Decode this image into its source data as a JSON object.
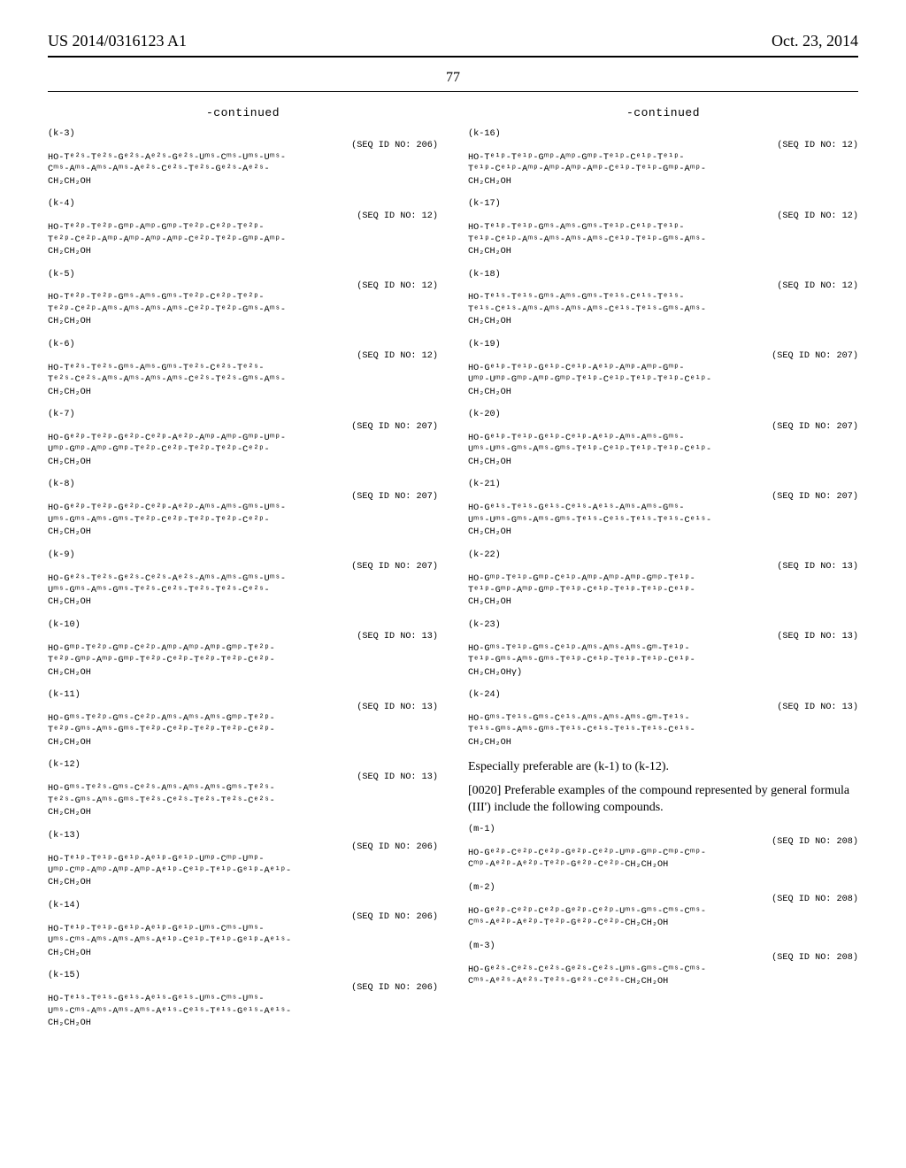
{
  "header": {
    "left": "US 2014/0316123 A1",
    "right": "Oct. 23, 2014",
    "pageno": "77"
  },
  "left_column": {
    "continued": "-continued",
    "blocks": [
      {
        "tag": "(k-3)",
        "seqid": "(SEQ ID NO: 206)",
        "lines": "HO-Tᵉ²ˢ-Tᵉ²ˢ-Gᵉ²ˢ-Aᵉ²ˢ-Gᵉ²ˢ-Uᵐˢ-Cᵐˢ-Uᵐˢ-Uᵐˢ-\nCᵐˢ-Aᵐˢ-Aᵐˢ-Aᵐˢ-Aᵉ²ˢ-Cᵉ²ˢ-Tᵉ²ˢ-Gᵉ²ˢ-Aᵉ²ˢ-\nCH₂CH₂OH"
      },
      {
        "tag": "(k-4)",
        "seqid": "(SEQ ID NO: 12)",
        "lines": "HO-Tᵉ²ᵖ-Tᵉ²ᵖ-Gᵐᵖ-Aᵐᵖ-Gᵐᵖ-Tᵉ²ᵖ-Cᵉ²ᵖ-Tᵉ²ᵖ-\nTᵉ²ᵖ-Cᵉ²ᵖ-Aᵐᵖ-Aᵐᵖ-Aᵐᵖ-Aᵐᵖ-Cᵉ²ᵖ-Tᵉ²ᵖ-Gᵐᵖ-Aᵐᵖ-\nCH₂CH₂OH"
      },
      {
        "tag": "(k-5)",
        "seqid": "(SEQ ID NO: 12)",
        "lines": "HO-Tᵉ²ᵖ-Tᵉ²ᵖ-Gᵐˢ-Aᵐˢ-Gᵐˢ-Tᵉ²ᵖ-Cᵉ²ᵖ-Tᵉ²ᵖ-\nTᵉ²ᵖ-Cᵉ²ᵖ-Aᵐˢ-Aᵐˢ-Aᵐˢ-Aᵐˢ-Cᵉ²ᵖ-Tᵉ²ᵖ-Gᵐˢ-Aᵐˢ-\nCH₂CH₂OH"
      },
      {
        "tag": "(k-6)",
        "seqid": "(SEQ ID NO: 12)",
        "lines": "HO-Tᵉ²ˢ-Tᵉ²ˢ-Gᵐˢ-Aᵐˢ-Gᵐˢ-Tᵉ²ˢ-Cᵉ²ˢ-Tᵉ²ˢ-\nTᵉ²ˢ-Cᵉ²ˢ-Aᵐˢ-Aᵐˢ-Aᵐˢ-Aᵐˢ-Cᵉ²ˢ-Tᵉ²ˢ-Gᵐˢ-Aᵐˢ-\nCH₂CH₂OH"
      },
      {
        "tag": "(k-7)",
        "seqid": "(SEQ ID NO: 207)",
        "lines": "HO-Gᵉ²ᵖ-Tᵉ²ᵖ-Gᵉ²ᵖ-Cᵉ²ᵖ-Aᵉ²ᵖ-Aᵐᵖ-Aᵐᵖ-Gᵐᵖ-Uᵐᵖ-\nUᵐᵖ-Gᵐᵖ-Aᵐᵖ-Gᵐᵖ-Tᵉ²ᵖ-Cᵉ²ᵖ-Tᵉ²ᵖ-Tᵉ²ᵖ-Cᵉ²ᵖ-\nCH₂CH₂OH"
      },
      {
        "tag": "(k-8)",
        "seqid": "(SEQ ID NO: 207)",
        "lines": "HO-Gᵉ²ᵖ-Tᵉ²ᵖ-Gᵉ²ᵖ-Cᵉ²ᵖ-Aᵉ²ᵖ-Aᵐˢ-Aᵐˢ-Gᵐˢ-Uᵐˢ-\nUᵐˢ-Gᵐˢ-Aᵐˢ-Gᵐˢ-Tᵉ²ᵖ-Cᵉ²ᵖ-Tᵉ²ᵖ-Tᵉ²ᵖ-Cᵉ²ᵖ-\nCH₂CH₂OH"
      },
      {
        "tag": "(k-9)",
        "seqid": "(SEQ ID NO: 207)",
        "lines": "HO-Gᵉ²ˢ-Tᵉ²ˢ-Gᵉ²ˢ-Cᵉ²ˢ-Aᵉ²ˢ-Aᵐˢ-Aᵐˢ-Gᵐˢ-Uᵐˢ-\nUᵐˢ-Gᵐˢ-Aᵐˢ-Gᵐˢ-Tᵉ²ˢ-Cᵉ²ˢ-Tᵉ²ˢ-Tᵉ²ˢ-Cᵉ²ˢ-\nCH₂CH₂OH"
      },
      {
        "tag": "(k-10)",
        "seqid": "(SEQ ID NO: 13)",
        "lines": "HO-Gᵐᵖ-Tᵉ²ᵖ-Gᵐᵖ-Cᵉ²ᵖ-Aᵐᵖ-Aᵐᵖ-Aᵐᵖ-Gᵐᵖ-Tᵉ²ᵖ-\nTᵉ²ᵖ-Gᵐᵖ-Aᵐᵖ-Gᵐᵖ-Tᵉ²ᵖ-Cᵉ²ᵖ-Tᵉ²ᵖ-Tᵉ²ᵖ-Cᵉ²ᵖ-\nCH₂CH₂OH"
      },
      {
        "tag": "(k-11)",
        "seqid": "(SEQ ID NO: 13)",
        "lines": "HO-Gᵐˢ-Tᵉ²ᵖ-Gᵐˢ-Cᵉ²ᵖ-Aᵐˢ-Aᵐˢ-Aᵐˢ-Gᵐᵖ-Tᵉ²ᵖ-\nTᵉ²ᵖ-Gᵐˢ-Aᵐˢ-Gᵐˢ-Tᵉ²ᵖ-Cᵉ²ᵖ-Tᵉ²ᵖ-Tᵉ²ᵖ-Cᵉ²ᵖ-\nCH₂CH₂OH"
      },
      {
        "tag": "(k-12)",
        "seqid": "(SEQ ID NO: 13)",
        "lines": "HO-Gᵐˢ-Tᵉ²ˢ-Gᵐˢ-Cᵉ²ˢ-Aᵐˢ-Aᵐˢ-Aᵐˢ-Gᵐˢ-Tᵉ²ˢ-\nTᵉ²ˢ-Gᵐˢ-Aᵐˢ-Gᵐˢ-Tᵉ²ˢ-Cᵉ²ˢ-Tᵉ²ˢ-Tᵉ²ˢ-Cᵉ²ˢ-\nCH₂CH₂OH"
      },
      {
        "tag": "(k-13)",
        "seqid": "(SEQ ID NO: 206)",
        "lines": "HO-Tᵉ¹ᵖ-Tᵉ¹ᵖ-Gᵉ¹ᵖ-Aᵉ¹ᵖ-Gᵉ¹ᵖ-Uᵐᵖ-Cᵐᵖ-Uᵐᵖ-\nUᵐᵖ-Cᵐᵖ-Aᵐᵖ-Aᵐᵖ-Aᵐᵖ-Aᵉ¹ᵖ-Cᵉ¹ᵖ-Tᵉ¹ᵖ-Gᵉ¹ᵖ-Aᵉ¹ᵖ-\nCH₂CH₂OH"
      },
      {
        "tag": "(k-14)",
        "seqid": "(SEQ ID NO: 206)",
        "lines": "HO-Tᵉ¹ᵖ-Tᵉ¹ᵖ-Gᵉ¹ᵖ-Aᵉ¹ᵖ-Gᵉ¹ᵖ-Uᵐˢ-Cᵐˢ-Uᵐˢ-\nUᵐˢ-Cᵐˢ-Aᵐˢ-Aᵐˢ-Aᵐˢ-Aᵉ¹ᵖ-Cᵉ¹ᵖ-Tᵉ¹ᵖ-Gᵉ¹ᵖ-Aᵉ¹ˢ-\nCH₂CH₂OH"
      },
      {
        "tag": "(k-15)",
        "seqid": "(SEQ ID NO: 206)",
        "lines": "HO-Tᵉ¹ˢ-Tᵉ¹ˢ-Gᵉ¹ˢ-Aᵉ¹ˢ-Gᵉ¹ˢ-Uᵐˢ-Cᵐˢ-Uᵐˢ-\nUᵐˢ-Cᵐˢ-Aᵐˢ-Aᵐˢ-Aᵐˢ-Aᵉ¹ˢ-Cᵉ¹ˢ-Tᵉ¹ˢ-Gᵉ¹ˢ-Aᵉ¹ˢ-\nCH₂CH₂OH"
      }
    ]
  },
  "right_column": {
    "continued": "-continued",
    "blocks": [
      {
        "tag": "(k-16)",
        "seqid": "(SEQ ID NO: 12)",
        "lines": "HO-Tᵉ¹ᵖ-Tᵉ¹ᵖ-Gᵐᵖ-Aᵐᵖ-Gᵐᵖ-Tᵉ¹ᵖ-Cᵉ¹ᵖ-Tᵉ¹ᵖ-\nTᵉ¹ᵖ-Cᵉ¹ᵖ-Aᵐᵖ-Aᵐᵖ-Aᵐᵖ-Aᵐᵖ-Cᵉ¹ᵖ-Tᵉ¹ᵖ-Gᵐᵖ-Aᵐᵖ-\nCH₂CH₂OH"
      },
      {
        "tag": "(k-17)",
        "seqid": "(SEQ ID NO: 12)",
        "lines": "HO-Tᵉ¹ᵖ-Tᵉ¹ᵖ-Gᵐˢ-Aᵐˢ-Gᵐˢ-Tᵉ¹ᵖ-Cᵉ¹ᵖ-Tᵉ¹ᵖ-\nTᵉ¹ᵖ-Cᵉ¹ᵖ-Aᵐˢ-Aᵐˢ-Aᵐˢ-Aᵐˢ-Cᵉ¹ᵖ-Tᵉ¹ᵖ-Gᵐˢ-Aᵐˢ-\nCH₂CH₂OH"
      },
      {
        "tag": "(k-18)",
        "seqid": "(SEQ ID NO: 12)",
        "lines": "HO-Tᵉ¹ˢ-Tᵉ¹ˢ-Gᵐˢ-Aᵐˢ-Gᵐˢ-Tᵉ¹ˢ-Cᵉ¹ˢ-Tᵉ¹ˢ-\nTᵉ¹ˢ-Cᵉ¹ˢ-Aᵐˢ-Aᵐˢ-Aᵐˢ-Aᵐˢ-Cᵉ¹ˢ-Tᵉ¹ˢ-Gᵐˢ-Aᵐˢ-\nCH₂CH₂OH"
      },
      {
        "tag": "(k-19)",
        "seqid": "(SEQ ID NO: 207)",
        "lines": "HO-Gᵉ¹ᵖ-Tᵉ¹ᵖ-Gᵉ¹ᵖ-Cᵉ¹ᵖ-Aᵉ¹ᵖ-Aᵐᵖ-Aᵐᵖ-Gᵐᵖ-\nUᵐᵖ-Uᵐᵖ-Gᵐᵖ-Aᵐᵖ-Gᵐᵖ-Tᵉ¹ᵖ-Cᵉ¹ᵖ-Tᵉ¹ᵖ-Tᵉ¹ᵖ-Cᵉ¹ᵖ-\nCH₂CH₂OH"
      },
      {
        "tag": "(k-20)",
        "seqid": "(SEQ ID NO: 207)",
        "lines": "HO-Gᵉ¹ᵖ-Tᵉ¹ᵖ-Gᵉ¹ᵖ-Cᵉ¹ᵖ-Aᵉ¹ᵖ-Aᵐˢ-Aᵐˢ-Gᵐˢ-\nUᵐˢ-Uᵐˢ-Gᵐˢ-Aᵐˢ-Gᵐˢ-Tᵉ¹ᵖ-Cᵉ¹ᵖ-Tᵉ¹ᵖ-Tᵉ¹ᵖ-Cᵉ¹ᵖ-\nCH₂CH₂OH"
      },
      {
        "tag": "(k-21)",
        "seqid": "(SEQ ID NO: 207)",
        "lines": "HO-Gᵉ¹ˢ-Tᵉ¹ˢ-Gᵉ¹ˢ-Cᵉ¹ˢ-Aᵉ¹ˢ-Aᵐˢ-Aᵐˢ-Gᵐˢ-\nUᵐˢ-Uᵐˢ-Gᵐˢ-Aᵐˢ-Gᵐˢ-Tᵉ¹ˢ-Cᵉ¹ˢ-Tᵉ¹ˢ-Tᵉ¹ˢ-Cᵉ¹ˢ-\nCH₂CH₂OH"
      },
      {
        "tag": "(k-22)",
        "seqid": "(SEQ ID NO: 13)",
        "lines": "HO-Gᵐᵖ-Tᵉ¹ᵖ-Gᵐᵖ-Cᵉ¹ᵖ-Aᵐᵖ-Aᵐᵖ-Aᵐᵖ-Gᵐᵖ-Tᵉ¹ᵖ-\nTᵉ¹ᵖ-Gᵐᵖ-Aᵐᵖ-Gᵐᵖ-Tᵉ¹ᵖ-Cᵉ¹ᵖ-Tᵉ¹ᵖ-Tᵉ¹ᵖ-Cᵉ¹ᵖ-\nCH₂CH₂OH"
      },
      {
        "tag": "(k-23)",
        "seqid": "(SEQ ID NO: 13)",
        "lines": "HO-Gᵐˢ-Tᵉ¹ᵖ-Gᵐˢ-Cᵉ¹ᵖ-Aᵐˢ-Aᵐˢ-Aᵐˢ-Gᵐ-Tᵉ¹ᵖ-\nTᵉ¹ᵖ-Gᵐˢ-Aᵐˢ-Gᵐˢ-Tᵉ¹ᵖ-Cᵉ¹ᵖ-Tᵉ¹ᵖ-Tᵉ¹ᵖ-Cᵉ¹ᵖ-\nCH₂CH₂OHγ)"
      },
      {
        "tag": "(k-24)",
        "seqid": "(SEQ ID NO: 13)",
        "lines": "HO-Gᵐˢ-Tᵉ¹ˢ-Gᵐˢ-Cᵉ¹ˢ-Aᵐˢ-Aᵐˢ-Aᵐˢ-Gᵐ-Tᵉ¹ˢ-\nTᵉ¹ˢ-Gᵐˢ-Aᵐˢ-Gᵐˢ-Tᵉ¹ˢ-Cᵉ¹ˢ-Tᵉ¹ˢ-Tᵉ¹ˢ-Cᵉ¹ˢ-\nCH₂CH₂OH"
      }
    ],
    "body_paragraphs": [
      "Especially preferable are (k-1) to (k-12).",
      "[0020]    Preferable examples of the compound represented by general formula (III') include the following compounds."
    ],
    "m_blocks": [
      {
        "tag": "(m-1)",
        "seqid": "(SEQ ID NO: 208)",
        "lines": "HO-Gᵉ²ᵖ-Cᵉ²ᵖ-Cᵉ²ᵖ-Gᵉ²ᵖ-Cᵉ²ᵖ-Uᵐᵖ-Gᵐᵖ-Cᵐᵖ-Cᵐᵖ-\nCᵐᵖ-Aᵉ²ᵖ-Aᵉ²ᵖ-Tᵉ²ᵖ-Gᵉ²ᵖ-Cᵉ²ᵖ-CH₂CH₂OH"
      },
      {
        "tag": "(m-2)",
        "seqid": "(SEQ ID NO: 208)",
        "lines": "HO-Gᵉ²ᵖ-Cᵉ²ᵖ-Cᵉ²ᵖ-Gᵉ²ᵖ-Cᵉ²ᵖ-Uᵐˢ-Gᵐˢ-Cᵐˢ-Cᵐˢ-\nCᵐˢ-Aᵉ²ᵖ-Aᵉ²ᵖ-Tᵉ²ᵖ-Gᵉ²ᵖ-Cᵉ²ᵖ-CH₂CH₂OH"
      },
      {
        "tag": "(m-3)",
        "seqid": "(SEQ ID NO: 208)",
        "lines": "HO-Gᵉ²ˢ-Cᵉ²ˢ-Cᵉ²ˢ-Gᵉ²ˢ-Cᵉ²ˢ-Uᵐˢ-Gᵐˢ-Cᵐˢ-Cᵐˢ-\nCᵐˢ-Aᵉ²ˢ-Aᵉ²ˢ-Tᵉ²ˢ-Gᵉ²ˢ-Cᵉ²ˢ-CH₂CH₂OH"
      }
    ]
  }
}
